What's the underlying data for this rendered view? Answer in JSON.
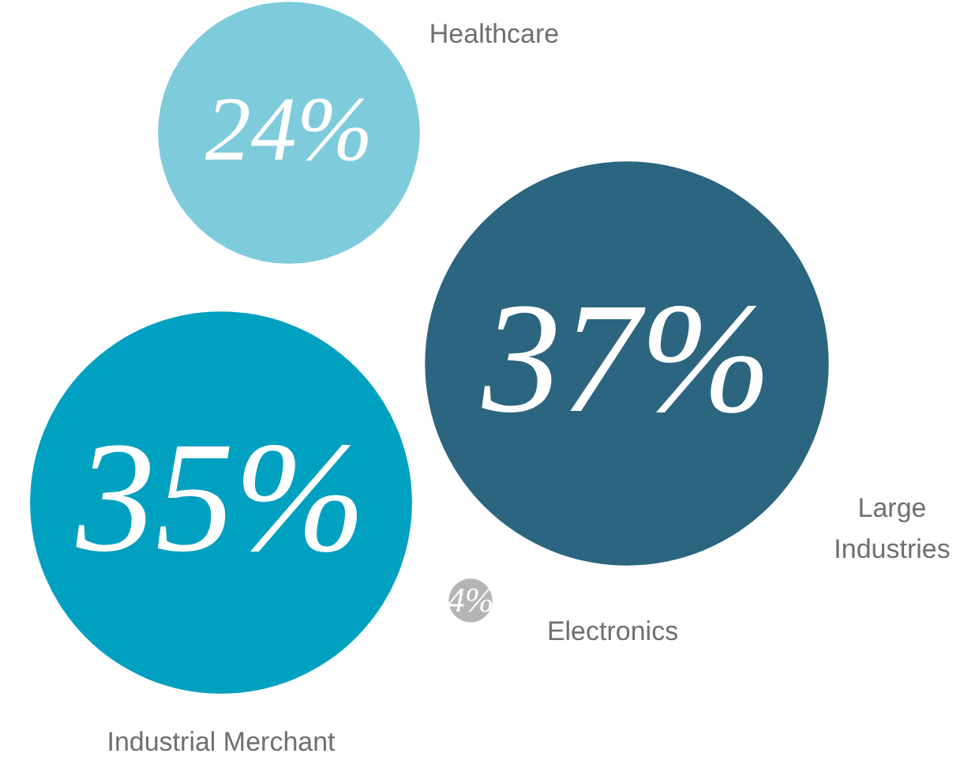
{
  "chart_data": {
    "type": "other",
    "categories": [
      "Healthcare",
      "Large Industries",
      "Industrial Merchant",
      "Electronics"
    ],
    "values": [
      24,
      37,
      35,
      4
    ],
    "value_labels": [
      "24%",
      "37%",
      "35%",
      "4%"
    ],
    "colors": [
      "#7ecbdc",
      "#2b6580",
      "#00a0c0",
      "#b5b5b5"
    ]
  }
}
